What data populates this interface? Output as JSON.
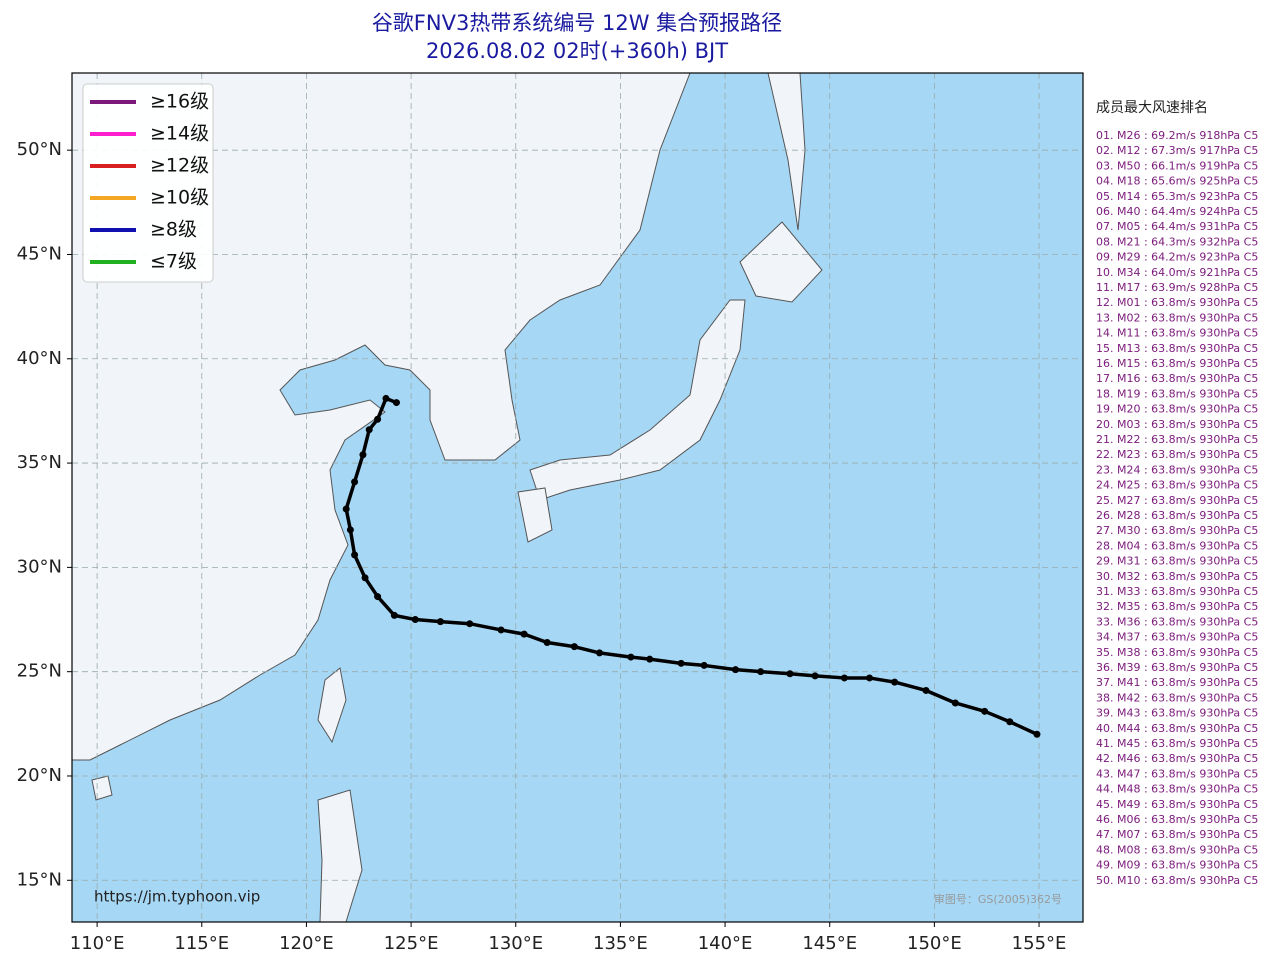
{
  "chart_data": {
    "type": "map",
    "title": "谷歌FNV3热带系统编号 12W 集合预报路径",
    "subtitle": "2026.08.02 02时(+360h) BJT",
    "xlim": [
      108.8,
      157.1
    ],
    "ylim": [
      13.0,
      53.7
    ],
    "xticks": [
      {
        "value": 110,
        "label": "110°E"
      },
      {
        "value": 115,
        "label": "115°E"
      },
      {
        "value": 120,
        "label": "120°E"
      },
      {
        "value": 125,
        "label": "125°E"
      },
      {
        "value": 130,
        "label": "130°E"
      },
      {
        "value": 135,
        "label": "135°E"
      },
      {
        "value": 140,
        "label": "140°E"
      },
      {
        "value": 145,
        "label": "145°E"
      },
      {
        "value": 150,
        "label": "150°E"
      },
      {
        "value": 155,
        "label": "155°E"
      }
    ],
    "yticks": [
      {
        "value": 15,
        "label": "15°N"
      },
      {
        "value": 20,
        "label": "20°N"
      },
      {
        "value": 25,
        "label": "25°N"
      },
      {
        "value": 30,
        "label": "30°N"
      },
      {
        "value": 35,
        "label": "35°N"
      },
      {
        "value": 40,
        "label": "40°N"
      },
      {
        "value": 45,
        "label": "45°N"
      },
      {
        "value": 50,
        "label": "50°N"
      }
    ],
    "grid": true,
    "legend": {
      "corner": "upper left",
      "entries": [
        {
          "name": "≥16级",
          "color": "#7b1a7b"
        },
        {
          "name": "≥14级",
          "color": "#ff1dd0"
        },
        {
          "name": "≥12级",
          "color": "#d82020"
        },
        {
          "name": "≥10级",
          "color": "#f5a623"
        },
        {
          "name": "≥8级",
          "color": "#1010b0"
        },
        {
          "name": "≤7级",
          "color": "#20b020"
        }
      ]
    },
    "track": {
      "color": "#000000",
      "x": [
        154.9,
        153.6,
        152.4,
        151.0,
        149.6,
        148.1,
        146.9,
        145.7,
        144.3,
        143.1,
        141.7,
        140.5,
        139.0,
        137.9,
        136.4,
        135.5,
        134.0,
        132.8,
        131.5,
        130.4,
        129.3,
        127.8,
        126.4,
        125.2,
        124.2,
        123.4,
        122.8,
        122.3,
        122.1,
        121.9,
        122.3,
        122.7,
        123.0,
        123.4,
        123.8,
        124.3
      ],
      "values": [
        22.0,
        22.6,
        23.1,
        23.5,
        24.1,
        24.5,
        24.7,
        24.7,
        24.8,
        24.9,
        25.0,
        25.1,
        25.3,
        25.4,
        25.6,
        25.7,
        25.9,
        26.2,
        26.4,
        26.8,
        27.0,
        27.3,
        27.4,
        27.5,
        27.7,
        28.6,
        29.5,
        30.6,
        31.8,
        32.8,
        34.1,
        35.4,
        36.6,
        37.1,
        38.1,
        37.9
      ]
    },
    "source": "https://jm.typhoon.vip",
    "approval": "审图号：GS(2005)362号",
    "ranking": {
      "title": "成员最大风速排名",
      "entries": [
        "01. M26 : 69.2m/s 918hPa C5",
        "02. M12 : 67.3m/s 917hPa C5",
        "03. M50 : 66.1m/s 919hPa C5",
        "04. M18 : 65.6m/s 925hPa C5",
        "05. M14 : 65.3m/s 923hPa C5",
        "06. M40 : 64.4m/s 924hPa C5",
        "07. M05 : 64.4m/s 931hPa C5",
        "08. M21 : 64.3m/s 932hPa C5",
        "09. M29 : 64.2m/s 923hPa C5",
        "10. M34 : 64.0m/s 921hPa C5",
        "11. M17 : 63.9m/s 928hPa C5",
        "12. M01 : 63.8m/s 930hPa C5",
        "13. M02 : 63.8m/s 930hPa C5",
        "14. M11 : 63.8m/s 930hPa C5",
        "15. M13 : 63.8m/s 930hPa C5",
        "16. M15 : 63.8m/s 930hPa C5",
        "17. M16 : 63.8m/s 930hPa C5",
        "18. M19 : 63.8m/s 930hPa C5",
        "19. M20 : 63.8m/s 930hPa C5",
        "20. M03 : 63.8m/s 930hPa C5",
        "21. M22 : 63.8m/s 930hPa C5",
        "22. M23 : 63.8m/s 930hPa C5",
        "23. M24 : 63.8m/s 930hPa C5",
        "24. M25 : 63.8m/s 930hPa C5",
        "25. M27 : 63.8m/s 930hPa C5",
        "26. M28 : 63.8m/s 930hPa C5",
        "27. M30 : 63.8m/s 930hPa C5",
        "28. M04 : 63.8m/s 930hPa C5",
        "29. M31 : 63.8m/s 930hPa C5",
        "30. M32 : 63.8m/s 930hPa C5",
        "31. M33 : 63.8m/s 930hPa C5",
        "32. M35 : 63.8m/s 930hPa C5",
        "33. M36 : 63.8m/s 930hPa C5",
        "34. M37 : 63.8m/s 930hPa C5",
        "35. M38 : 63.8m/s 930hPa C5",
        "36. M39 : 63.8m/s 930hPa C5",
        "37. M41 : 63.8m/s 930hPa C5",
        "38. M42 : 63.8m/s 930hPa C5",
        "39. M43 : 63.8m/s 930hPa C5",
        "40. M44 : 63.8m/s 930hPa C5",
        "41. M45 : 63.8m/s 930hPa C5",
        "42. M46 : 63.8m/s 930hPa C5",
        "43. M47 : 63.8m/s 930hPa C5",
        "44. M48 : 63.8m/s 930hPa C5",
        "45. M49 : 63.8m/s 930hPa C5",
        "46. M06 : 63.8m/s 930hPa C5",
        "47. M07 : 63.8m/s 930hPa C5",
        "48. M08 : 63.8m/s 930hPa C5",
        "49. M09 : 63.8m/s 930hPa C5",
        "50. M10 : 63.8m/s 930hPa C5"
      ]
    }
  }
}
